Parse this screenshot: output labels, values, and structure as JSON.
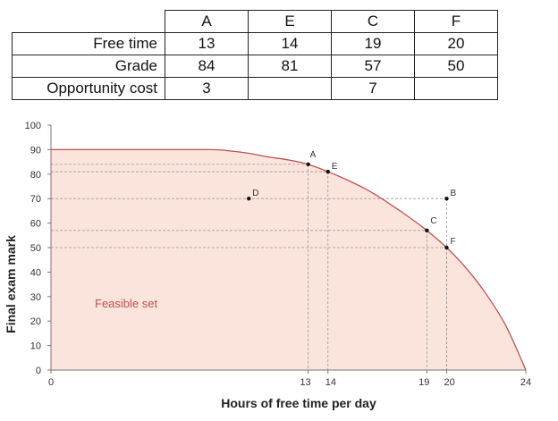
{
  "table": {
    "columns": [
      "A",
      "E",
      "C",
      "F"
    ],
    "rows": [
      {
        "label": "Free time",
        "values": [
          "13",
          "14",
          "19",
          "20"
        ]
      },
      {
        "label": "Grade",
        "values": [
          "84",
          "81",
          "57",
          "50"
        ]
      },
      {
        "label": "Opportunity cost",
        "values": [
          "3",
          "",
          "7",
          ""
        ]
      }
    ]
  },
  "chart_data": {
    "type": "area",
    "title": "",
    "xlabel": "Hours of free time per day",
    "ylabel": "Final exam mark",
    "xlim": [
      0,
      24
    ],
    "ylim": [
      0,
      100
    ],
    "x_ticks": [
      "0",
      "13",
      "14",
      "19",
      "20",
      "24"
    ],
    "x_tick_values": [
      0,
      13,
      14,
      19,
      20,
      24
    ],
    "y_ticks": [
      0,
      10,
      20,
      30,
      40,
      50,
      60,
      70,
      80,
      90,
      100
    ],
    "frontier": {
      "x": [
        0,
        4,
        8,
        9,
        10,
        11,
        12,
        13,
        14,
        15,
        16,
        17,
        18,
        19,
        20,
        21,
        22,
        23,
        24
      ],
      "y": [
        90,
        90,
        90,
        89.5,
        88.5,
        87,
        85.8,
        84,
        81,
        77.5,
        73.5,
        68.5,
        63,
        57,
        50,
        41.5,
        31,
        18,
        0
      ]
    },
    "region_label": "Feasible set",
    "points": [
      {
        "label": "A",
        "x": 13,
        "y": 84
      },
      {
        "label": "E",
        "x": 14,
        "y": 81
      },
      {
        "label": "D",
        "x": 10,
        "y": 70
      },
      {
        "label": "B",
        "x": 20,
        "y": 70
      },
      {
        "label": "C",
        "x": 19,
        "y": 57
      },
      {
        "label": "F",
        "x": 20,
        "y": 50
      }
    ],
    "colors": {
      "fill": "#fbe4dc",
      "curve": "#c0504d",
      "region_label": "#c0504d",
      "dashed": "#9a9a9a",
      "axis": "#777777"
    }
  }
}
